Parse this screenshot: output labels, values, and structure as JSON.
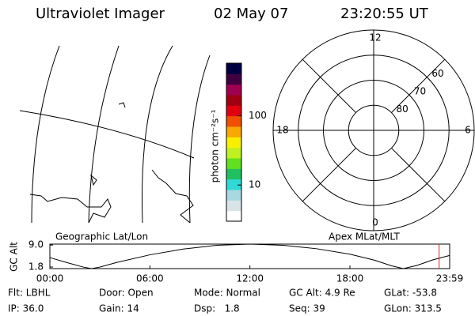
{
  "header": {
    "title": "Ultraviolet Imager",
    "date": "02 May 07",
    "time": "23:20:55 UT"
  },
  "colorbar": {
    "label": "photon cm⁻²s⁻¹",
    "scale": "log",
    "lim": [
      3,
      575
    ],
    "ticks": [
      10,
      100
    ],
    "colors": [
      "#ffffff",
      "#d8e4e8",
      "#a8d8e0",
      "#30d8d8",
      "#20c060",
      "#60e020",
      "#c0f020",
      "#f8f000",
      "#f8a800",
      "#f05000",
      "#e00010",
      "#a00010",
      "#a00050",
      "#400040",
      "#000040"
    ]
  },
  "polar": {
    "rlim": [
      90,
      50
    ],
    "mlt_ticks": [
      12,
      18,
      6,
      0
    ],
    "mlat_ticks": [
      80,
      70,
      60
    ]
  },
  "chart_data": {
    "type": "line",
    "ylabel": "GC Alt",
    "left_label": "Geographic Lat/Lon",
    "right_label": "Apex MLat/MLT",
    "x": [
      0,
      1,
      2,
      2.5,
      3,
      4,
      6,
      8,
      10,
      12,
      14,
      16,
      18,
      19.5,
      20.5,
      21.2,
      22,
      23,
      23.98
    ],
    "values": [
      4.9,
      3.3,
      1.8,
      1.3,
      1.8,
      3.3,
      5.8,
      7.7,
      8.9,
      9.3,
      8.9,
      7.8,
      6.0,
      4.0,
      2.2,
      1.3,
      2.3,
      4.2,
      5.6
    ],
    "color": "#000000",
    "marker_x": 23.35,
    "marker_color": "#e02020",
    "xlim": [
      0,
      23.983
    ],
    "ylim": [
      1.3,
      9.3
    ],
    "xticks": [
      {
        "value": 0,
        "label": "00:00"
      },
      {
        "value": 6,
        "label": "06:00"
      },
      {
        "value": 12,
        "label": "12:00"
      },
      {
        "value": 18,
        "label": "18:00"
      },
      {
        "value": 23.983,
        "label": "23:59"
      }
    ],
    "yticks": [
      {
        "value": 9,
        "label": "9.0"
      },
      1.8
    ]
  },
  "footer": {
    "rows": [
      [
        "Flt: LBHL",
        "Door: Open",
        "Mode: Normal",
        "GC Alt: 4.9 Re",
        "GLat: -53.8"
      ],
      [
        "IP: 36.0",
        "Gain: 14",
        "Dsp:   1.8",
        "Seq: 39",
        "GLon: 313.5"
      ]
    ]
  }
}
